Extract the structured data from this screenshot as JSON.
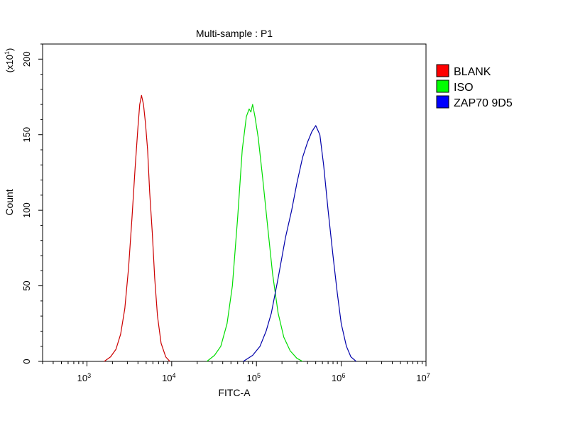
{
  "chart_data": {
    "type": "histogram",
    "title": "Multi-sample : P1",
    "xlabel": "FITC-A",
    "ylabel": "Count",
    "y_multiplier": "(x10^1)",
    "x_scale": "log",
    "xlim": [
      300,
      10000000
    ],
    "ylim": [
      0,
      210
    ],
    "x_ticks": [
      {
        "value": 1000,
        "base": "10",
        "exp": "3"
      },
      {
        "value": 10000,
        "base": "10",
        "exp": "4"
      },
      {
        "value": 100000,
        "base": "10",
        "exp": "5"
      },
      {
        "value": 1000000,
        "base": "10",
        "exp": "6"
      },
      {
        "value": 10000000,
        "base": "10",
        "exp": "7"
      }
    ],
    "y_ticks": [
      {
        "value": 0,
        "label": "0"
      },
      {
        "value": 50,
        "label": "50"
      },
      {
        "value": 100,
        "label": "100"
      },
      {
        "value": 150,
        "label": "150"
      },
      {
        "value": 200,
        "label": "200"
      }
    ],
    "grid": false,
    "legend_position": "right",
    "series": [
      {
        "name": "BLANK",
        "color": "#cc0000",
        "legend_color": "#ff0000",
        "points": [
          [
            1600,
            0
          ],
          [
            1900,
            3
          ],
          [
            2200,
            8
          ],
          [
            2500,
            18
          ],
          [
            2800,
            35
          ],
          [
            3100,
            62
          ],
          [
            3400,
            95
          ],
          [
            3700,
            128
          ],
          [
            4000,
            155
          ],
          [
            4200,
            170
          ],
          [
            4400,
            176
          ],
          [
            4650,
            170
          ],
          [
            4900,
            158
          ],
          [
            5200,
            140
          ],
          [
            5500,
            112
          ],
          [
            5900,
            85
          ],
          [
            6300,
            55
          ],
          [
            6800,
            30
          ],
          [
            7500,
            12
          ],
          [
            8500,
            3
          ],
          [
            9500,
            0
          ]
        ]
      },
      {
        "name": "ISO",
        "color": "#00dd00",
        "legend_color": "#00ff00",
        "points": [
          [
            26000,
            0
          ],
          [
            32000,
            4
          ],
          [
            38000,
            10
          ],
          [
            45000,
            25
          ],
          [
            52000,
            50
          ],
          [
            60000,
            95
          ],
          [
            68000,
            140
          ],
          [
            76000,
            162
          ],
          [
            82000,
            167
          ],
          [
            86000,
            165
          ],
          [
            90000,
            170
          ],
          [
            96000,
            162
          ],
          [
            105000,
            148
          ],
          [
            118000,
            122
          ],
          [
            135000,
            90
          ],
          [
            155000,
            58
          ],
          [
            180000,
            32
          ],
          [
            210000,
            16
          ],
          [
            250000,
            7
          ],
          [
            300000,
            2
          ],
          [
            350000,
            0
          ]
        ]
      },
      {
        "name": "ZAP70 9D5",
        "color": "#0000aa",
        "legend_color": "#0000ff",
        "points": [
          [
            70000,
            0
          ],
          [
            90000,
            4
          ],
          [
            110000,
            10
          ],
          [
            130000,
            20
          ],
          [
            150000,
            32
          ],
          [
            180000,
            55
          ],
          [
            220000,
            82
          ],
          [
            260000,
            100
          ],
          [
            300000,
            118
          ],
          [
            350000,
            135
          ],
          [
            400000,
            145
          ],
          [
            450000,
            152
          ],
          [
            500000,
            156
          ],
          [
            560000,
            150
          ],
          [
            620000,
            130
          ],
          [
            700000,
            100
          ],
          [
            800000,
            70
          ],
          [
            900000,
            45
          ],
          [
            1000000,
            25
          ],
          [
            1150000,
            10
          ],
          [
            1300000,
            3
          ],
          [
            1500000,
            0
          ]
        ]
      }
    ]
  }
}
